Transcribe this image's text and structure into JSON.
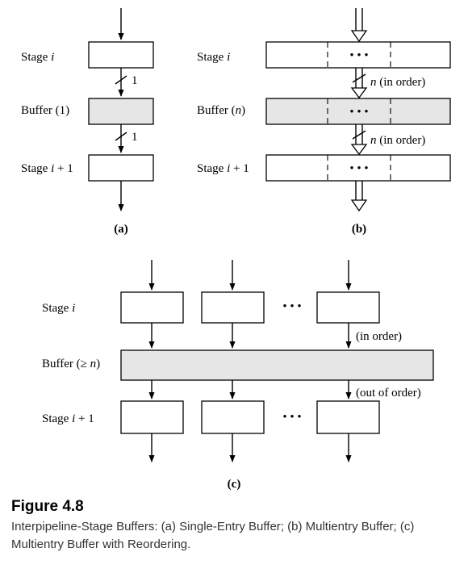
{
  "colors": {
    "buffer_fill": "#e6e6e6",
    "stroke": "#000000",
    "caption_text": "#333333"
  },
  "panel_a": {
    "stage_label": "Stage ",
    "stage_var": "i",
    "buffer_label": "Buffer (1)",
    "next_stage_label": "Stage ",
    "next_stage_var": "i",
    "next_stage_suffix": " + 1",
    "width_label_1": "1",
    "width_label_2": "1",
    "panel_label": "(a)"
  },
  "panel_b": {
    "stage_label": "Stage ",
    "stage_var": "i",
    "buffer_label_prefix": "Buffer (",
    "buffer_var": "n",
    "buffer_label_suffix": ")",
    "next_stage_label": "Stage ",
    "next_stage_var": "i",
    "next_stage_suffix": " + 1",
    "flow_var": "n",
    "flow_label": " (in order)",
    "ellipsis": "• • •",
    "panel_label": "(b)"
  },
  "panel_c": {
    "stage_label": "Stage ",
    "stage_var": "i",
    "buffer_label_prefix": "Buffer (≥ ",
    "buffer_var": "n",
    "buffer_label_suffix": ")",
    "next_stage_label": "Stage ",
    "next_stage_var": "i",
    "next_stage_suffix": " + 1",
    "in_label": "(in order)",
    "out_label": "(out of order)",
    "ellipsis": "• • •",
    "panel_label": "(c)"
  },
  "caption": {
    "title": "Figure 4.8",
    "text": "Interpipeline-Stage Buffers: (a) Single-Entry Buffer; (b) Multientry Buffer; (c) Multientry Buffer with Reordering."
  }
}
